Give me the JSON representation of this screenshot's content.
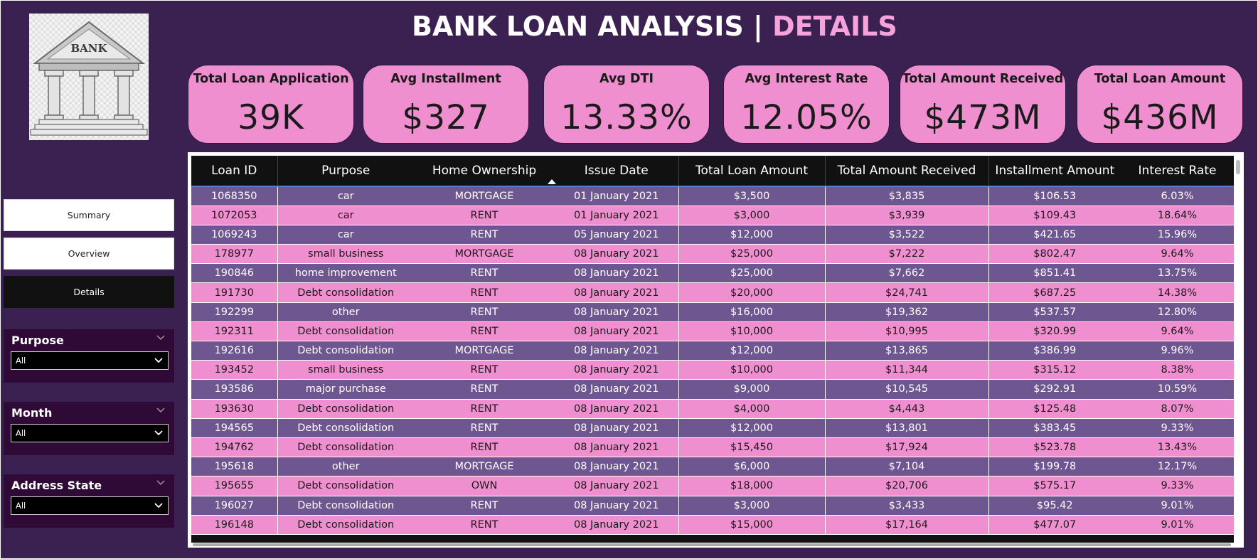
{
  "logo": {
    "text": "BANK",
    "icon": "bank-building-icon"
  },
  "title": {
    "main": "BANK LOAN ANALYSIS",
    "separator": "|",
    "accent": "DETAILS"
  },
  "kpis": [
    {
      "label": "Total Loan Application",
      "value": "39K"
    },
    {
      "label": "Avg Installment",
      "value": "$327"
    },
    {
      "label": "Avg DTI",
      "value": "13.33%"
    },
    {
      "label": "Avg Interest Rate",
      "value": "12.05%"
    },
    {
      "label": "Total Amount Received",
      "value": "$473M"
    },
    {
      "label": "Total Loan Amount",
      "value": "$436M"
    }
  ],
  "nav": [
    {
      "label": "Summary"
    },
    {
      "label": "Overview"
    },
    {
      "label": "Details",
      "active": true
    }
  ],
  "slicers": [
    {
      "title": "Purpose",
      "value": "All"
    },
    {
      "title": "Month",
      "value": "All"
    },
    {
      "title": "Address State",
      "value": "All"
    }
  ],
  "table": {
    "columns": [
      "Loan ID",
      "Purpose",
      "Home Ownership",
      "Issue Date",
      "Total Loan Amount",
      "Total Amount Received",
      "Installment Amount",
      "Interest Rate"
    ],
    "rows": [
      [
        "1068350",
        "car",
        "MORTGAGE",
        "01 January 2021",
        "$3,500",
        "$3,835",
        "$106.53",
        "6.03%"
      ],
      [
        "1072053",
        "car",
        "RENT",
        "01 January 2021",
        "$3,000",
        "$3,939",
        "$109.43",
        "18.64%"
      ],
      [
        "1069243",
        "car",
        "RENT",
        "05 January 2021",
        "$12,000",
        "$3,522",
        "$421.65",
        "15.96%"
      ],
      [
        "178977",
        "small business",
        "MORTGAGE",
        "08 January 2021",
        "$25,000",
        "$7,222",
        "$802.47",
        "9.64%"
      ],
      [
        "190846",
        "home improvement",
        "RENT",
        "08 January 2021",
        "$25,000",
        "$7,662",
        "$851.41",
        "13.75%"
      ],
      [
        "191730",
        "Debt consolidation",
        "RENT",
        "08 January 2021",
        "$20,000",
        "$24,741",
        "$687.25",
        "14.38%"
      ],
      [
        "192299",
        "other",
        "RENT",
        "08 January 2021",
        "$16,000",
        "$19,362",
        "$537.57",
        "12.80%"
      ],
      [
        "192311",
        "Debt consolidation",
        "RENT",
        "08 January 2021",
        "$10,000",
        "$10,995",
        "$320.99",
        "9.64%"
      ],
      [
        "192616",
        "Debt consolidation",
        "MORTGAGE",
        "08 January 2021",
        "$12,000",
        "$13,865",
        "$386.99",
        "9.96%"
      ],
      [
        "193452",
        "small business",
        "RENT",
        "08 January 2021",
        "$10,000",
        "$11,344",
        "$315.12",
        "8.38%"
      ],
      [
        "193586",
        "major purchase",
        "RENT",
        "08 January 2021",
        "$9,000",
        "$10,545",
        "$292.91",
        "10.59%"
      ],
      [
        "193630",
        "Debt consolidation",
        "RENT",
        "08 January 2021",
        "$4,000",
        "$4,443",
        "$125.48",
        "8.07%"
      ],
      [
        "194565",
        "Debt consolidation",
        "RENT",
        "08 January 2021",
        "$12,000",
        "$13,801",
        "$383.45",
        "9.33%"
      ],
      [
        "194762",
        "Debt consolidation",
        "RENT",
        "08 January 2021",
        "$15,450",
        "$17,924",
        "$523.78",
        "13.43%"
      ],
      [
        "195618",
        "other",
        "MORTGAGE",
        "08 January 2021",
        "$6,000",
        "$7,104",
        "$199.78",
        "12.17%"
      ],
      [
        "195655",
        "Debt consolidation",
        "OWN",
        "08 January 2021",
        "$18,000",
        "$20,706",
        "$575.17",
        "9.33%"
      ],
      [
        "196027",
        "Debt consolidation",
        "RENT",
        "08 January 2021",
        "$3,000",
        "$3,433",
        "$95.42",
        "9.01%"
      ],
      [
        "196148",
        "Debt consolidation",
        "RENT",
        "08 January 2021",
        "$15,000",
        "$17,164",
        "$477.07",
        "9.01%"
      ]
    ]
  },
  "colors": {
    "background": "#3a2152",
    "card": "#f08fd0",
    "accent": "#f5a3da",
    "row_dark": "#6e5690",
    "row_light": "#f08fd0",
    "slicer_bg": "#2f0a36"
  }
}
